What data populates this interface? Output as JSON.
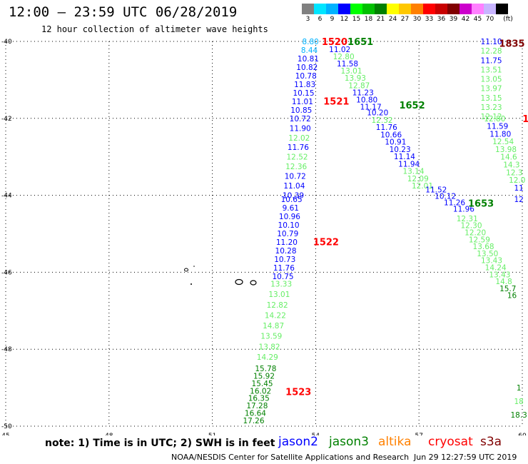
{
  "header": {
    "title": "12:00 – 23:59 UTC 06/28/2019",
    "subtitle": "12 hour collection of altimeter wave heights"
  },
  "scale": {
    "unit_label": "(ft)",
    "bins": [
      {
        "label": "3",
        "color": "#808080"
      },
      {
        "label": "6",
        "color": "#00e5ff"
      },
      {
        "label": "9",
        "color": "#00b2ff"
      },
      {
        "label": "12",
        "color": "#0000ff"
      },
      {
        "label": "15",
        "color": "#00ff00"
      },
      {
        "label": "18",
        "color": "#00c000"
      },
      {
        "label": "21",
        "color": "#008000"
      },
      {
        "label": "24",
        "color": "#ffff00"
      },
      {
        "label": "27",
        "color": "#ffc800"
      },
      {
        "label": "30",
        "color": "#ff8000"
      },
      {
        "label": "33",
        "color": "#ff0000"
      },
      {
        "label": "36",
        "color": "#c80000"
      },
      {
        "label": "39",
        "color": "#800000"
      },
      {
        "label": "42",
        "color": "#cc00cc"
      },
      {
        "label": "45",
        "color": "#ff80ff"
      },
      {
        "label": "70",
        "color": "#c8b4ff"
      },
      {
        "label": "",
        "color": "#000000"
      }
    ]
  },
  "map": {
    "lon_range": [
      45,
      60
    ],
    "lat_range": [
      -50,
      -40
    ],
    "lon_ticks": [
      "45",
      "48",
      "51",
      "54",
      "57",
      "60"
    ],
    "lat_ticks": [
      "-40",
      "-42",
      "-44",
      "-46",
      "-48",
      "-50"
    ]
  },
  "passes": [
    {
      "satellite": "jason2",
      "segments": [
        {
          "start": [
            53.85,
            -40.0
          ],
          "end": [
            53.55,
            -42.0
          ],
          "values": [
            "8.80",
            "8.44",
            "10.81",
            "10.82",
            "10.78",
            "11.83",
            "10.15",
            "11.01",
            "10.85",
            "10.72"
          ],
          "colors": [
            "#00b2ff",
            "#00b2ff",
            "#0000ff",
            "#0000ff",
            "#0000ff",
            "#0000ff",
            "#0000ff",
            "#0000ff",
            "#0000ff",
            "#0000ff"
          ]
        },
        {
          "start": [
            53.55,
            -42.25
          ],
          "end": [
            53.35,
            -44.0
          ],
          "values": [
            "11.90",
            "12.02",
            "11.76",
            "12.52",
            "12.36",
            "10.72",
            "11.04",
            "10.39"
          ],
          "colors": [
            "#0000ff",
            "#66ee66",
            "#0000ff",
            "#66ee66",
            "#66ee66",
            "#0000ff",
            "#0000ff",
            "#0000ff"
          ]
        },
        {
          "start": [
            53.3,
            -44.1
          ],
          "end": [
            53.05,
            -46.1
          ],
          "values": [
            "10.65",
            "9.61",
            "10.96",
            "10.10",
            "10.79",
            "11.20",
            "10.28",
            "10.73",
            "11.76",
            "10.75"
          ],
          "colors": [
            "#0000ff",
            "#0000ff",
            "#0000ff",
            "#0000ff",
            "#0000ff",
            "#0000ff",
            "#0000ff",
            "#0000ff",
            "#0000ff",
            "#0000ff"
          ]
        },
        {
          "start": [
            53.0,
            -46.3
          ],
          "end": [
            52.6,
            -48.2
          ],
          "values": [
            "13.33",
            "13.01",
            "12.82",
            "14.22",
            "14.87",
            "13.59",
            "13.82",
            "14.29"
          ],
          "colors": [
            "#66ee66",
            "#66ee66",
            "#66ee66",
            "#66ee66",
            "#66ee66",
            "#66ee66",
            "#66ee66",
            "#66ee66"
          ]
        },
        {
          "start": [
            52.55,
            -48.5
          ],
          "end": [
            52.2,
            -49.85
          ],
          "values": [
            "15.78",
            "15.92",
            "15.45",
            "16.02",
            "16.35",
            "17.28",
            "16.64",
            "17.26"
          ],
          "colors": [
            "#008000",
            "#008000",
            "#008000",
            "#008000",
            "#008000",
            "#008000",
            "#008000",
            "#008000"
          ]
        }
      ]
    },
    {
      "satellite": "jason3",
      "segments": [
        {
          "start": [
            54.7,
            -40.2
          ],
          "end": [
            55.6,
            -41.7
          ],
          "values": [
            "11.02",
            "12.80",
            "11.58",
            "13.01",
            "13.93",
            "12.87",
            "11.23",
            "10.80",
            "11.17"
          ],
          "colors": [
            "#0000ff",
            "#66ee66",
            "#0000ff",
            "#66ee66",
            "#66ee66",
            "#66ee66",
            "#0000ff",
            "#0000ff",
            "#0000ff"
          ]
        },
        {
          "start": [
            55.8,
            -41.85
          ],
          "end": [
            57.1,
            -43.75
          ],
          "values": [
            "10.20",
            "12.32",
            "11.76",
            "10.66",
            "10.91",
            "10.23",
            "11.14",
            "11.94",
            "13.14",
            "12.09",
            "12.01"
          ],
          "colors": [
            "#0000ff",
            "#66ee66",
            "#0000ff",
            "#0000ff",
            "#0000ff",
            "#0000ff",
            "#0000ff",
            "#0000ff",
            "#66ee66",
            "#66ee66",
            "#66ee66"
          ]
        },
        {
          "start": [
            57.5,
            -43.85
          ],
          "end": [
            58.3,
            -44.35
          ],
          "values": [
            "11.52",
            "10.12",
            "11.26",
            "11.96"
          ],
          "colors": [
            "#0000ff",
            "#0000ff",
            "#0000ff",
            "#0000ff"
          ]
        },
        {
          "start": [
            58.4,
            -44.6
          ],
          "end": [
            59.7,
            -46.6
          ],
          "values": [
            "12.31",
            "12.30",
            "12.20",
            "12.59",
            "13.68",
            "13.50",
            "13.43",
            "14.24",
            "13.43",
            "14.8",
            "15.7",
            "16"
          ],
          "colors": [
            "#66ee66",
            "#66ee66",
            "#66ee66",
            "#66ee66",
            "#66ee66",
            "#66ee66",
            "#66ee66",
            "#66ee66",
            "#66ee66",
            "#66ee66",
            "#008000",
            "#008000"
          ]
        },
        {
          "start": [
            59.1,
            -40.0
          ],
          "end": [
            59.1,
            -41.95
          ],
          "values": [
            "11.10",
            "12.28",
            "11.75",
            "13.51",
            "13.05",
            "13.97",
            "13.15",
            "13.23",
            "12.12"
          ],
          "colors": [
            "#0000ff",
            "#66ee66",
            "#0000ff",
            "#66ee66",
            "#66ee66",
            "#66ee66",
            "#66ee66",
            "#66ee66",
            "#66ee66"
          ]
        },
        {
          "start": [
            59.2,
            -42.0
          ],
          "end": [
            59.85,
            -43.6
          ],
          "values": [
            "12.80",
            "11.59",
            "11.80",
            "12.54",
            "13.98",
            "14.6",
            "14.3",
            "12.3",
            "12.0"
          ],
          "colors": [
            "#66ee66",
            "#0000ff",
            "#0000ff",
            "#66ee66",
            "#66ee66",
            "#66ee66",
            "#66ee66",
            "#66ee66",
            "#66ee66"
          ]
        },
        {
          "start": [
            59.9,
            -43.8
          ],
          "end": [
            59.9,
            -44.1
          ],
          "values": [
            "11",
            "12"
          ],
          "colors": [
            "#0000ff",
            "#0000ff"
          ]
        },
        {
          "start": [
            59.9,
            -49.0
          ],
          "end": [
            59.9,
            -49.7
          ],
          "values": [
            "1",
            "18",
            "18.3"
          ],
          "colors": [
            "#008000",
            "#66ee66",
            "#008000"
          ]
        }
      ]
    }
  ],
  "time_labels": [
    {
      "text": "1520",
      "lon": 54.55,
      "lat": -40.0,
      "color": "#ff0000"
    },
    {
      "text": "1651",
      "lon": 55.3,
      "lat": -40.0,
      "color": "#008000"
    },
    {
      "text": "1835",
      "lon": 59.7,
      "lat": -40.05,
      "color": "#800000"
    },
    {
      "text": "1521",
      "lon": 54.6,
      "lat": -41.55,
      "color": "#ff0000"
    },
    {
      "text": "1652",
      "lon": 56.8,
      "lat": -41.65,
      "color": "#008000"
    },
    {
      "text": "1653",
      "lon": 58.8,
      "lat": -44.2,
      "color": "#008000"
    },
    {
      "text": "1522",
      "lon": 54.3,
      "lat": -45.2,
      "color": "#ff0000"
    },
    {
      "text": "1523",
      "lon": 53.5,
      "lat": -49.1,
      "color": "#ff0000"
    },
    {
      "text": "1",
      "lon": 60.1,
      "lat": -42.0,
      "color": "#ff0000"
    }
  ],
  "legend": {
    "note": "note: 1) Time is in UTC; 2) SWH is in feet",
    "satellites": [
      {
        "name": "jason2",
        "color": "#0000ff"
      },
      {
        "name": "jason3",
        "color": "#008000"
      },
      {
        "name": "altika",
        "color": "#ff8000"
      },
      {
        "name": "cryosat",
        "color": "#ff0000"
      },
      {
        "name": "s3a",
        "color": "#800000"
      }
    ]
  },
  "footer": {
    "credit": "NOAA/NESDIS Center for Satellite Applications and Research",
    "timestamp": "Jun 29 12:27:59 UTC 2019"
  }
}
